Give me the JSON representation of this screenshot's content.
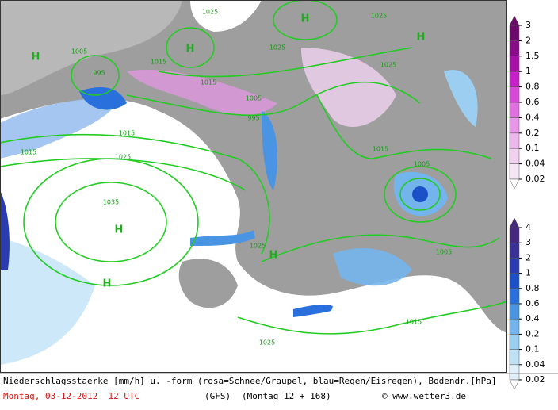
{
  "map": {
    "labels": [
      "H",
      "H",
      "H",
      "H",
      "H",
      "H",
      "H",
      "1025",
      "1025",
      "1025",
      "1025",
      "1025",
      "1025",
      "1025",
      "1015",
      "1015",
      "1015",
      "1015",
      "1015",
      "1015",
      "1005",
      "1005",
      "1005",
      "1005",
      "995",
      "995",
      "1035"
    ]
  },
  "legend_snow": {
    "labels": [
      "3",
      "2",
      "1.5",
      "1",
      "0.8",
      "0.6",
      "0.4",
      "0.2",
      "0.1",
      "0.04",
      "0.02"
    ],
    "colors": [
      "#f4e6f4",
      "#f0d2f0",
      "#ecb8ec",
      "#e896e8",
      "#e070e0",
      "#d848d8",
      "#c820c8",
      "#a810a8",
      "#880c88",
      "#6c0a6c"
    ]
  },
  "legend_rain": {
    "labels": [
      "4",
      "3",
      "2",
      "1",
      "0.8",
      "0.6",
      "0.4",
      "0.2",
      "0.1",
      "0.04",
      "0.02"
    ],
    "colors": [
      "#e0f0fa",
      "#c0e2f6",
      "#9ccef2",
      "#74b4ec",
      "#4a94e4",
      "#2a70dc",
      "#1c50c8",
      "#2a3cb0",
      "#3a3098",
      "#44287c"
    ]
  },
  "footer": {
    "description": "Niederschlagsstaerke [mm/h] u. -form (rosa=Schnee/Graupel, blau=Regen/Eisregen), Bodendr.[hPa]",
    "date": "Montag, 03-12-2012  12 UTC",
    "model": "(GFS)",
    "run": "(Montag 12 + 168)",
    "credit": "© www.wetter3.de"
  }
}
